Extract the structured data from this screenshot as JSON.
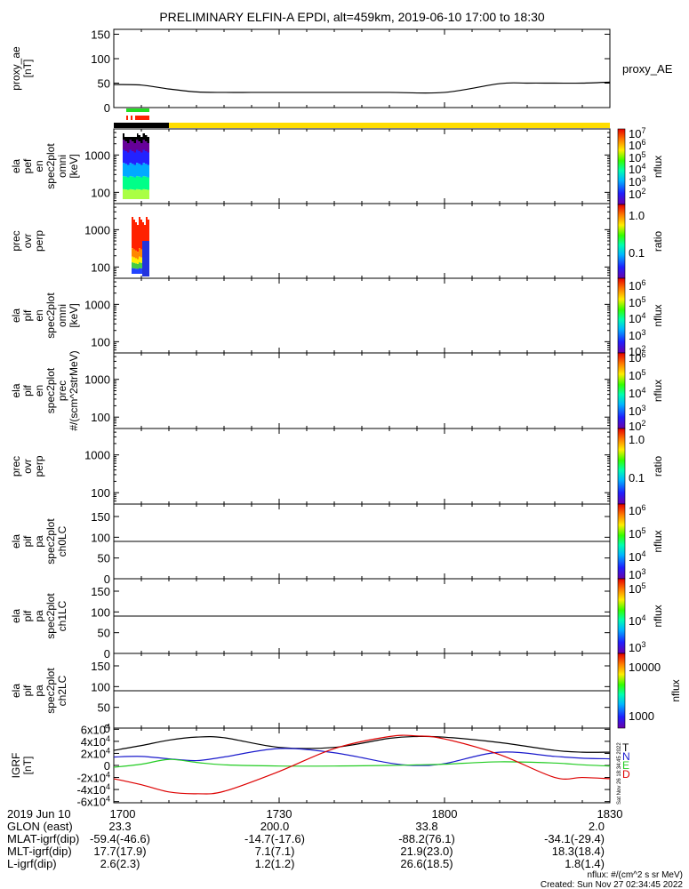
{
  "title": "PRELIMINARY ELFIN-A EPDI, alt=459km, 2019-06-10 17:00 to 18:30",
  "chart_data": {
    "type": "line",
    "panels": [
      {
        "id": "proxy_ae",
        "ylabel_lines": [
          "proxy_ae",
          "[nT]"
        ],
        "yticks": [
          "0",
          "50",
          "100",
          "150"
        ],
        "ylim": [
          0,
          160
        ],
        "legend": "proxy_AE",
        "series": [
          {
            "name": "proxy_AE",
            "color": "#000000",
            "x": [
              0,
              5,
              10,
              15,
              20,
              25,
              30,
              40,
              50,
              60,
              70,
              75,
              80,
              85,
              90
            ],
            "y": [
              47,
              46,
              38,
              32,
              31,
              31,
              31,
              31,
              31,
              31,
              49,
              50,
              50,
              50,
              52
            ]
          }
        ]
      },
      {
        "id": "ela_pef_omni",
        "ylabel_lines": [
          "ela",
          "pef",
          "en",
          "spec2plot",
          "omni",
          "[keV]"
        ],
        "yticks": [
          "100",
          "1000"
        ],
        "cbar": {
          "label": "nflux",
          "ticks": [
            "10^7",
            "10^6",
            "10^5",
            "10^4",
            "10^3",
            "10^2"
          ]
        }
      },
      {
        "id": "ela_pef_ratio",
        "ylabel_lines": [
          "prec",
          "ovr",
          "perp"
        ],
        "yticks": [
          "100",
          "1000"
        ],
        "cbar": {
          "label": "ratio",
          "ticks": [
            "1.0",
            "0.1"
          ]
        }
      },
      {
        "id": "ela_pif_omni",
        "ylabel_lines": [
          "ela",
          "pif",
          "en",
          "spec2plot",
          "omni",
          "[keV]"
        ],
        "yticks": [
          "100",
          "1000"
        ],
        "cbar": {
          "label": "nflux",
          "ticks": [
            "10^6",
            "10^5",
            "10^4",
            "10^3",
            "10^2"
          ]
        }
      },
      {
        "id": "ela_pif_prec",
        "ylabel_lines": [
          "ela",
          "pif",
          "en",
          "spec2plot",
          "prec",
          "#/(scm^2strMeV)"
        ],
        "yticks": [
          "100",
          "1000"
        ],
        "cbar": {
          "label": "nflux",
          "ticks": [
            "10^6",
            "10^5",
            "10^4",
            "10^3",
            "10^2"
          ]
        }
      },
      {
        "id": "ela_pif_ratio",
        "ylabel_lines": [
          "prec",
          "ovr",
          "perp"
        ],
        "yticks": [
          "100",
          "1000"
        ],
        "cbar": {
          "label": "ratio",
          "ticks": [
            "1.0",
            "0.1"
          ]
        }
      },
      {
        "id": "pa_ch0",
        "ylabel_lines": [
          "ela",
          "pif",
          "pa",
          "spec2plot",
          "ch0LC"
        ],
        "yticks": [
          "0",
          "50",
          "100",
          "150"
        ],
        "cbar": {
          "label": "nflux",
          "ticks": [
            "10^6",
            "10^5",
            "10^4",
            "10^3"
          ]
        }
      },
      {
        "id": "pa_ch1",
        "ylabel_lines": [
          "ela",
          "pif",
          "pa",
          "spec2plot",
          "ch1LC"
        ],
        "yticks": [
          "0",
          "50",
          "100",
          "150"
        ],
        "cbar": {
          "label": "nflux",
          "ticks": [
            "10^5",
            "10^4",
            "10^3"
          ]
        }
      },
      {
        "id": "pa_ch2",
        "ylabel_lines": [
          "ela",
          "pif",
          "pa",
          "spec2plot",
          "ch2LC"
        ],
        "yticks": [
          "0",
          "50",
          "100",
          "150"
        ],
        "cbar": {
          "label": "nflux",
          "ticks": [
            "10000",
            "1000"
          ]
        }
      },
      {
        "id": "igrf",
        "ylabel_lines": [
          "IGRF",
          "[nT]"
        ],
        "yticks": [
          "-6x10^4",
          "-4x10^4",
          "-2x10^4",
          "0",
          "2x10^4",
          "4x10^4",
          "6x10^4"
        ],
        "ylim": [
          -62000,
          62000
        ],
        "legend": [
          "T",
          "N",
          "E",
          "D"
        ],
        "series": [
          {
            "name": "T",
            "color": "#000000",
            "x": [
              0,
              5,
              10,
              15,
              20,
              30,
              40,
              50,
              55,
              60,
              70,
              80,
              85,
              90
            ],
            "y": [
              25000,
              33000,
              42000,
              47000,
              46000,
              30000,
              30000,
              45000,
              48000,
              47000,
              38000,
              25000,
              22000,
              22000
            ]
          },
          {
            "name": "N",
            "color": "#1a1acc",
            "x": [
              0,
              5,
              10,
              15,
              20,
              30,
              40,
              50,
              55,
              60,
              70,
              80,
              85,
              90
            ],
            "y": [
              14000,
              15000,
              11000,
              8000,
              14000,
              28000,
              21000,
              4000,
              0,
              3000,
              22000,
              15000,
              12000,
              11000
            ]
          },
          {
            "name": "E",
            "color": "#22cc22",
            "x": [
              0,
              5,
              10,
              15,
              20,
              30,
              40,
              50,
              55,
              60,
              70,
              80,
              85,
              90
            ],
            "y": [
              -3000,
              2000,
              10000,
              5000,
              1000,
              -1000,
              -1000,
              0,
              1000,
              2000,
              6000,
              4000,
              1000,
              -1000
            ]
          },
          {
            "name": "D",
            "color": "#dd0000",
            "x": [
              0,
              5,
              10,
              15,
              20,
              30,
              40,
              50,
              55,
              60,
              70,
              80,
              85,
              90
            ],
            "y": [
              -22000,
              -32000,
              -44000,
              -47000,
              -43000,
              -10000,
              28000,
              48000,
              49000,
              44000,
              18000,
              -20000,
              -20000,
              -22000
            ]
          }
        ]
      }
    ],
    "time_axis": {
      "labels": [
        "1700",
        "1730",
        "1800",
        "1830"
      ]
    },
    "ephemeris": {
      "labels": [
        "2019 Jun 10",
        "GLON (east)",
        "MLAT-igrf(dip)",
        "MLT-igrf(dip)",
        "L-igrf(dip)"
      ],
      "columns": [
        [
          "1700",
          "23.3",
          "-59.4(-46.6)",
          "17.7(17.9)",
          "2.6(2.3)"
        ],
        [
          "1730",
          "200.0",
          "-14.7(-17.6)",
          "7.1(7.1)",
          "1.2(1.2)"
        ],
        [
          "1800",
          "33.8",
          "-88.2(76.1)",
          "21.9(23.0)",
          "26.6(18.5)"
        ],
        [
          "1830",
          "2.0",
          "-34.1(-29.4)",
          "18.3(18.4)",
          "1.8(1.4)"
        ]
      ]
    }
  },
  "footer": {
    "line1": "nflux: #/(cm^2 s sr MeV)",
    "line2": "Created: Sun Nov 27 02:34:45 2022",
    "stamp": "Sat Nov 26 18:34:45 2022"
  },
  "colors": {
    "bar_black": "#000000",
    "bar_yellow": "#ffdd00",
    "bar_green": "#22dd22",
    "bar_red": "#ff2200"
  }
}
